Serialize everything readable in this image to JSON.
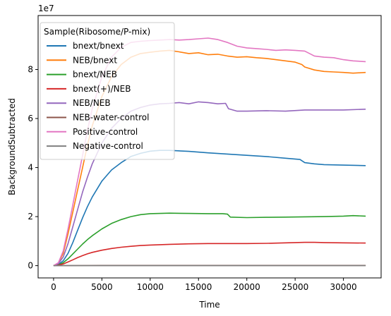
{
  "chart_data": {
    "type": "line",
    "xlabel": "Time",
    "ylabel": "BackgroundSubtracted",
    "offset_text": "1e7",
    "xlim": [
      -1600,
      33900
    ],
    "ylim": [
      -0.5,
      10.2
    ],
    "y_scale_note": "y values in units of 1e7",
    "x_ticks": [
      0,
      5000,
      10000,
      15000,
      20000,
      25000,
      30000
    ],
    "y_ticks": [
      0,
      2,
      4,
      6,
      8
    ],
    "legend_title": "Sample(Ribosome/P-mix)",
    "legend_position": "upper-left",
    "grid": false,
    "series": [
      {
        "name": "bnext/bnext",
        "color": "#1f77b4",
        "x": [
          0,
          500,
          1000,
          1500,
          2000,
          2500,
          3000,
          3500,
          4000,
          5000,
          6000,
          7000,
          8000,
          9000,
          10000,
          11000,
          12000,
          14000,
          16000,
          18000,
          20000,
          22000,
          24000,
          25500,
          26000,
          27000,
          28000,
          30000,
          32300
        ],
        "y": [
          0,
          0.05,
          0.2,
          0.5,
          0.95,
          1.45,
          1.95,
          2.4,
          2.8,
          3.45,
          3.9,
          4.2,
          4.45,
          4.58,
          4.67,
          4.7,
          4.7,
          4.66,
          4.6,
          4.55,
          4.5,
          4.45,
          4.38,
          4.33,
          4.2,
          4.15,
          4.12,
          4.1,
          4.08
        ]
      },
      {
        "name": "NEB/bnext",
        "color": "#ff7f0e",
        "x": [
          0,
          500,
          1000,
          1500,
          2000,
          2500,
          3000,
          3500,
          4000,
          5000,
          6000,
          7000,
          8000,
          9000,
          10000,
          11000,
          12000,
          13000,
          14000,
          15000,
          16000,
          17000,
          18000,
          19000,
          20000,
          21000,
          22000,
          23000,
          24000,
          25000,
          25700,
          26000,
          27000,
          28000,
          29000,
          30000,
          31000,
          32300
        ],
        "y": [
          0,
          0.1,
          0.5,
          1.3,
          2.2,
          3.1,
          4.0,
          4.9,
          5.7,
          6.9,
          7.7,
          8.2,
          8.5,
          8.65,
          8.7,
          8.75,
          8.78,
          8.72,
          8.65,
          8.68,
          8.6,
          8.62,
          8.55,
          8.5,
          8.52,
          8.48,
          8.45,
          8.4,
          8.35,
          8.3,
          8.2,
          8.1,
          7.98,
          7.92,
          7.9,
          7.88,
          7.85,
          7.88
        ]
      },
      {
        "name": "bnext/NEB",
        "color": "#2ca02c",
        "x": [
          0,
          500,
          1000,
          1500,
          2000,
          2500,
          3000,
          3500,
          4000,
          5000,
          6000,
          7000,
          8000,
          9000,
          10000,
          12000,
          14000,
          16000,
          17500,
          18000,
          18300,
          20000,
          22000,
          24000,
          26000,
          28000,
          30000,
          31000,
          32300
        ],
        "y": [
          0,
          0.03,
          0.12,
          0.28,
          0.48,
          0.68,
          0.88,
          1.06,
          1.22,
          1.5,
          1.72,
          1.88,
          2.0,
          2.08,
          2.12,
          2.14,
          2.13,
          2.12,
          2.12,
          2.1,
          1.98,
          1.96,
          1.97,
          1.98,
          1.99,
          2.0,
          2.02,
          2.04,
          2.02
        ]
      },
      {
        "name": "bnext(+)/NEB",
        "color": "#d62728",
        "x": [
          0,
          500,
          1000,
          1500,
          2000,
          2500,
          3000,
          3500,
          4000,
          5000,
          6000,
          7000,
          8000,
          9000,
          10000,
          12000,
          14000,
          16000,
          18000,
          20000,
          22000,
          24000,
          26000,
          27000,
          28000,
          30000,
          32300
        ],
        "y": [
          0,
          0.02,
          0.07,
          0.15,
          0.24,
          0.33,
          0.41,
          0.48,
          0.54,
          0.63,
          0.7,
          0.75,
          0.79,
          0.82,
          0.84,
          0.87,
          0.89,
          0.9,
          0.9,
          0.9,
          0.91,
          0.93,
          0.95,
          0.95,
          0.94,
          0.93,
          0.92
        ]
      },
      {
        "name": "NEB/NEB",
        "color": "#9467bd",
        "x": [
          0,
          500,
          1000,
          1500,
          2000,
          2500,
          3000,
          3500,
          4000,
          5000,
          6000,
          7000,
          8000,
          9000,
          10000,
          11000,
          12000,
          13000,
          14000,
          15000,
          16000,
          17000,
          17800,
          18100,
          19000,
          20000,
          22000,
          24000,
          26000,
          28000,
          30000,
          32300
        ],
        "y": [
          0,
          0.08,
          0.35,
          0.9,
          1.6,
          2.3,
          3.0,
          3.6,
          4.15,
          5.0,
          5.6,
          6.0,
          6.3,
          6.45,
          6.55,
          6.6,
          6.62,
          6.65,
          6.6,
          6.68,
          6.65,
          6.6,
          6.62,
          6.4,
          6.3,
          6.3,
          6.32,
          6.3,
          6.35,
          6.35,
          6.35,
          6.38
        ]
      },
      {
        "name": "NEB-water-control",
        "color": "#8c564b",
        "x": [
          0,
          5000,
          10000,
          15000,
          20000,
          25000,
          30000,
          32300
        ],
        "y": [
          0,
          0.01,
          0.01,
          0.01,
          0.01,
          0.01,
          0.01,
          0.01
        ]
      },
      {
        "name": "Positive-control",
        "color": "#e377c2",
        "x": [
          0,
          500,
          1000,
          1500,
          2000,
          2500,
          3000,
          3500,
          4000,
          5000,
          6000,
          7000,
          8000,
          9000,
          10000,
          11000,
          12000,
          13000,
          14000,
          15000,
          16000,
          17000,
          18000,
          19000,
          20000,
          21000,
          22000,
          23000,
          24000,
          25000,
          26000,
          27000,
          28000,
          29000,
          30000,
          31000,
          32300
        ],
        "y": [
          0,
          0.12,
          0.6,
          1.5,
          2.5,
          3.5,
          4.5,
          5.5,
          6.4,
          7.7,
          8.5,
          8.9,
          9.1,
          9.15,
          9.18,
          9.2,
          9.22,
          9.2,
          9.22,
          9.25,
          9.28,
          9.22,
          9.1,
          8.95,
          8.88,
          8.85,
          8.82,
          8.78,
          8.8,
          8.78,
          8.75,
          8.55,
          8.5,
          8.48,
          8.4,
          8.35,
          8.32
        ]
      },
      {
        "name": "Negative-control",
        "color": "#7f7f7f",
        "x": [
          0,
          5000,
          10000,
          15000,
          20000,
          25000,
          30000,
          32300
        ],
        "y": [
          0,
          0,
          0,
          0,
          0,
          0,
          0,
          0
        ]
      }
    ]
  }
}
